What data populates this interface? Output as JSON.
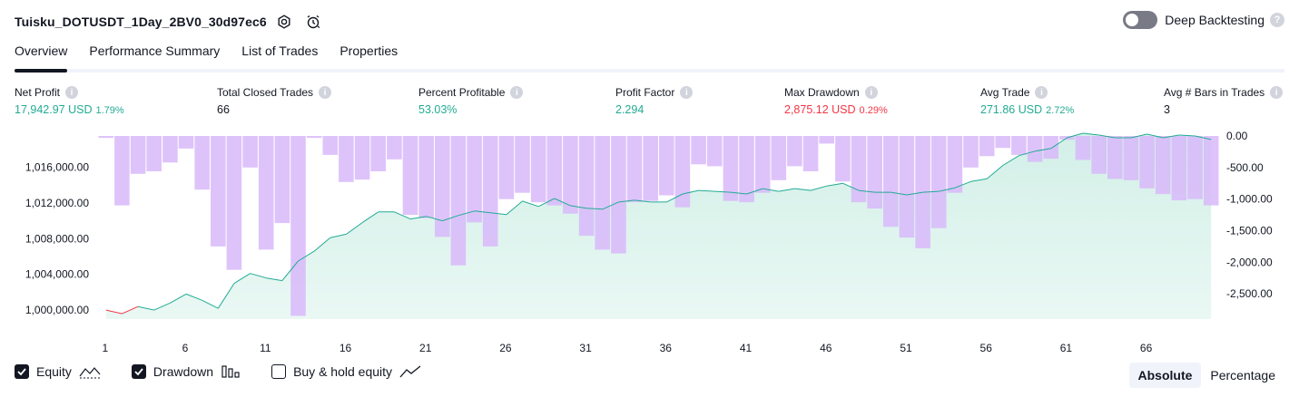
{
  "header": {
    "title": "Tuisku_DOTUSDT_1Day_2BV0_30d97ec6",
    "deep_backtesting_label": "Deep Backtesting"
  },
  "tabs": [
    {
      "label": "Overview"
    },
    {
      "label": "Performance Summary"
    },
    {
      "label": "List of Trades"
    },
    {
      "label": "Properties"
    }
  ],
  "metrics": {
    "net_profit": {
      "label": "Net Profit",
      "value": "17,942.97 USD",
      "pct": "1.79%"
    },
    "total_closed_trades": {
      "label": "Total Closed Trades",
      "value": "66"
    },
    "percent_profitable": {
      "label": "Percent Profitable",
      "value": "53.03%"
    },
    "profit_factor": {
      "label": "Profit Factor",
      "value": "2.294"
    },
    "max_drawdown": {
      "label": "Max Drawdown",
      "value": "2,875.12 USD",
      "pct": "0.29%"
    },
    "avg_trade": {
      "label": "Avg Trade",
      "value": "271.86 USD",
      "pct": "2.72%"
    },
    "avg_bars": {
      "label": "Avg # Bars in Trades",
      "value": "3"
    }
  },
  "legend": {
    "equity": "Equity",
    "drawdown": "Drawdown",
    "buy_hold": "Buy & hold equity"
  },
  "modes": {
    "absolute": "Absolute",
    "percentage": "Percentage"
  },
  "colors": {
    "equity_line": "#22ab94",
    "equity_negative": "#f23645",
    "equity_fill": "#d0efe6",
    "drawdown_bar": "#d8b8fa",
    "positive": "#22ab94",
    "negative": "#f23645"
  },
  "chart_data": {
    "type": "area",
    "x_ticks": [
      "1",
      "6",
      "11",
      "16",
      "21",
      "26",
      "31",
      "36",
      "41",
      "46",
      "51",
      "56",
      "61",
      "66"
    ],
    "y_left_ticks": [
      "1,016,000.00",
      "1,012,000.00",
      "1,008,000.00",
      "1,004,000.00",
      "1,000,000.00"
    ],
    "y_left_tick_values": [
      1016000,
      1012000,
      1008000,
      1004000,
      1000000
    ],
    "y_right_ticks": [
      "0.00",
      "-500.00",
      "-1,000.00",
      "-1,500.00",
      "-2,000.00",
      "-2,500.00"
    ],
    "y_right_tick_values": [
      0,
      -500,
      -1000,
      -1500,
      -2000,
      -2500
    ],
    "equity": [
      1000000,
      999600,
      1000400,
      1000000,
      1000800,
      1001800,
      1001100,
      1000200,
      1003000,
      1004100,
      1003600,
      1003300,
      1005500,
      1006600,
      1008100,
      1008500,
      1009800,
      1011000,
      1011000,
      1010200,
      1010500,
      1010000,
      1010600,
      1011100,
      1010900,
      1010700,
      1012200,
      1011600,
      1012500,
      1011700,
      1011400,
      1011300,
      1012100,
      1012300,
      1012100,
      1012100,
      1013000,
      1013400,
      1013300,
      1013200,
      1013000,
      1013600,
      1013300,
      1013600,
      1013400,
      1013900,
      1014200,
      1013400,
      1013200,
      1013200,
      1012900,
      1013200,
      1013300,
      1013700,
      1014400,
      1014700,
      1016200,
      1017300,
      1017800,
      1018100,
      1019300,
      1019800,
      1019600,
      1019300,
      1019300,
      1019700,
      1019300,
      1019600,
      1019500,
      1019100
    ],
    "drawdown": [
      -30,
      -1100,
      -600,
      -560,
      -420,
      -200,
      -850,
      -1750,
      -2120,
      -500,
      -1800,
      -1380,
      -2850,
      -30,
      -300,
      -730,
      -690,
      -560,
      -370,
      -1250,
      -1300,
      -1600,
      -2050,
      -1370,
      -1750,
      -1000,
      -900,
      -1050,
      -1100,
      -1230,
      -1580,
      -1800,
      -1860,
      -1050,
      -1030,
      -940,
      -1130,
      -450,
      -480,
      -1030,
      -1050,
      -900,
      -700,
      -480,
      -560,
      -120,
      -720,
      -1050,
      -1150,
      -1440,
      -1610,
      -1780,
      -1460,
      -900,
      -500,
      -320,
      -190,
      -300,
      -410,
      -360,
      -60,
      -380,
      -600,
      -680,
      -700,
      -830,
      -920,
      -1020,
      -1000,
      -1100
    ],
    "y_left_range": [
      999000,
      1019500
    ],
    "y_right_range": [
      -2900,
      0
    ],
    "grid": false
  }
}
